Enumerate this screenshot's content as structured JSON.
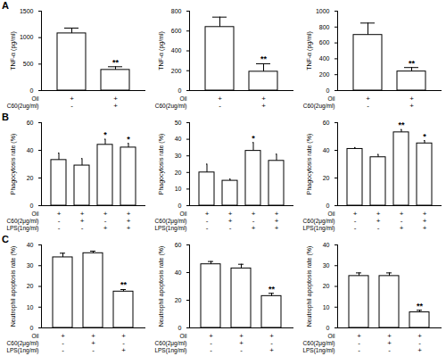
{
  "chart_data": [
    {
      "type": "bar",
      "title": "A",
      "y_label": "TNF-α (pg/ml)",
      "color": "#ffffff",
      "values": [
        1080,
        390
      ],
      "errors": [
        100,
        60
      ],
      "significance": [
        null,
        "**"
      ],
      "conditions": [
        {
          "label": "Oil",
          "marks": [
            "+",
            "+"
          ]
        },
        {
          "label": "C60(2ug/ml)",
          "marks": [
            "-",
            "+"
          ]
        }
      ],
      "ylim": [
        0,
        1500
      ],
      "yticks": [
        0,
        500,
        1000,
        1500
      ]
    },
    {
      "type": "bar",
      "y_label": "TNF-α (pg/ml)",
      "color": "#ffffff",
      "values": [
        640,
        190
      ],
      "errors": [
        100,
        80
      ],
      "significance": [
        null,
        "**"
      ],
      "conditions": [
        {
          "label": "Oil",
          "marks": [
            "+",
            "+"
          ]
        },
        {
          "label": "C60(2ug/ml)",
          "marks": [
            "-",
            "+"
          ]
        }
      ],
      "ylim": [
        0,
        800
      ],
      "yticks": [
        0,
        200,
        400,
        600,
        800
      ]
    },
    {
      "type": "bar",
      "y_label": "TNF-α (pg/ml)",
      "color": "#ffffff",
      "values": [
        700,
        240
      ],
      "errors": [
        150,
        50
      ],
      "significance": [
        null,
        "**"
      ],
      "conditions": [
        {
          "label": "Oil",
          "marks": [
            "+",
            "+"
          ]
        },
        {
          "label": "C60(2ug/ml)",
          "marks": [
            "-",
            "+"
          ]
        }
      ],
      "ylim": [
        0,
        1000
      ],
      "yticks": [
        0,
        200,
        400,
        600,
        800,
        1000
      ]
    },
    {
      "type": "bar",
      "title": "B",
      "y_label": "Phagocytosis rate (%)",
      "color": "#ffffff",
      "values": [
        33,
        29,
        44,
        42
      ],
      "errors": [
        5,
        5,
        4,
        3
      ],
      "significance": [
        null,
        null,
        "*",
        "*"
      ],
      "conditions": [
        {
          "label": "Oil",
          "marks": [
            "+",
            "+",
            "+",
            "+"
          ]
        },
        {
          "label": "C60(2μg/ml)",
          "marks": [
            "-",
            "+",
            "-",
            "+"
          ]
        },
        {
          "label": "LPS(1ng/ml)",
          "marks": [
            "-",
            "-",
            "+",
            "+"
          ]
        }
      ],
      "ylim": [
        0,
        60
      ],
      "yticks": [
        0,
        20,
        40,
        60
      ]
    },
    {
      "type": "bar",
      "y_label": "Phagocytosis rate (%)",
      "color": "#ffffff",
      "values": [
        20,
        15,
        33,
        27
      ],
      "errors": [
        5,
        1,
        5,
        4
      ],
      "significance": [
        null,
        null,
        "*",
        null
      ],
      "conditions": [
        {
          "label": "Oil",
          "marks": [
            "+",
            "+",
            "+",
            "+"
          ]
        },
        {
          "label": "C60(2μg/ml)",
          "marks": [
            "-",
            "+",
            "-",
            "+"
          ]
        },
        {
          "label": "LPS(1ng/ml)",
          "marks": [
            "-",
            "-",
            "+",
            "+"
          ]
        }
      ],
      "ylim": [
        0,
        50
      ],
      "yticks": [
        0,
        10,
        20,
        30,
        40,
        50
      ]
    },
    {
      "type": "bar",
      "y_label": "Phagocytosis rate (%)",
      "color": "#ffffff",
      "values": [
        41,
        35,
        53,
        45
      ],
      "errors": [
        1,
        2,
        2,
        2
      ],
      "significance": [
        null,
        null,
        "**",
        "*"
      ],
      "conditions": [
        {
          "label": "Oil",
          "marks": [
            "+",
            "+",
            "+",
            "+"
          ]
        },
        {
          "label": "C60(2μg/ml)",
          "marks": [
            "-",
            "+",
            "-",
            "+"
          ]
        },
        {
          "label": "LPS(1ng/ml)",
          "marks": [
            "-",
            "-",
            "+",
            "+"
          ]
        }
      ],
      "ylim": [
        0,
        60
      ],
      "yticks": [
        0,
        20,
        40,
        60
      ]
    },
    {
      "type": "bar",
      "title": "C",
      "y_label": "Neutrophil apoptosis rate (%)",
      "color": "#ffffff",
      "values": [
        34,
        36,
        17.5
      ],
      "errors": [
        2,
        1,
        1
      ],
      "significance": [
        null,
        null,
        "**"
      ],
      "conditions": [
        {
          "label": "Oil",
          "marks": [
            "+",
            "+",
            "+"
          ]
        },
        {
          "label": "C60(2μg/ml)",
          "marks": [
            "-",
            "+",
            "-"
          ]
        },
        {
          "label": "LPS(1ng/ml)",
          "marks": [
            "-",
            "-",
            "+"
          ]
        }
      ],
      "ylim": [
        0,
        40
      ],
      "yticks": [
        0,
        10,
        20,
        30,
        40
      ]
    },
    {
      "type": "bar",
      "y_label": "Neutrophil apoptosis rate (%)",
      "color": "#ffffff",
      "values": [
        46,
        43,
        23
      ],
      "errors": [
        2,
        3,
        2
      ],
      "significance": [
        null,
        null,
        "**"
      ],
      "conditions": [
        {
          "label": "Oil",
          "marks": [
            "+",
            "+",
            "+"
          ]
        },
        {
          "label": "C60(2μg/ml)",
          "marks": [
            "-",
            "+",
            "-"
          ]
        },
        {
          "label": "LPS(1ng/ml)",
          "marks": [
            "-",
            "-",
            "+"
          ]
        }
      ],
      "ylim": [
        0,
        60
      ],
      "yticks": [
        0,
        20,
        40,
        60
      ]
    },
    {
      "type": "bar",
      "y_label": "Neutrophil apoptosis rate (%)",
      "color": "#ffffff",
      "values": [
        25,
        25,
        7.5
      ],
      "errors": [
        1.5,
        1.5,
        1
      ],
      "significance": [
        null,
        null,
        "**"
      ],
      "conditions": [
        {
          "label": "Oil",
          "marks": [
            "+",
            "+",
            "+"
          ]
        },
        {
          "label": "C60(2μg/ml)",
          "marks": [
            "-",
            "+",
            "-"
          ]
        },
        {
          "label": "LPS(1ng/ml)",
          "marks": [
            "-",
            "-",
            "+"
          ]
        }
      ],
      "ylim": [
        0,
        40
      ],
      "yticks": [
        0,
        10,
        20,
        30,
        40
      ]
    }
  ]
}
